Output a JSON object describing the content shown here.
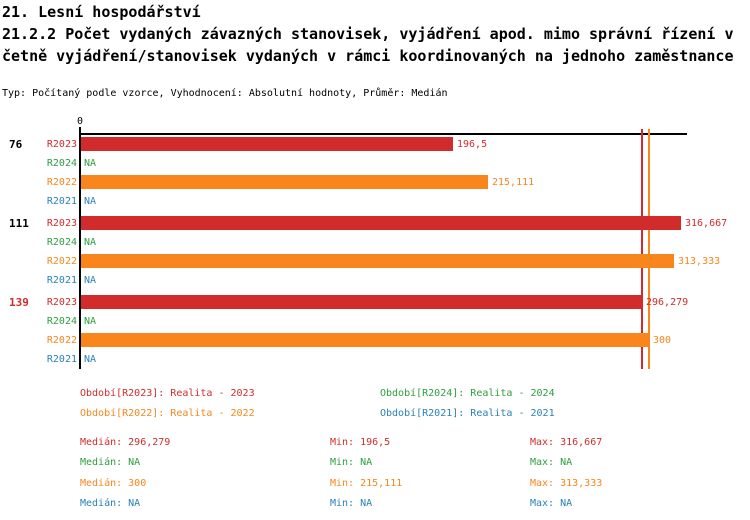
{
  "header": {
    "title_line1": "21. Lesní hospodářství",
    "title_line2": "21.2.2 Počet vydaných závazných stanovisek, vyjádření apod. mimo správní řízení v",
    "title_line3": "četně vyjádření/stanovisek vydaných v rámci koordinovaných na jednoho zaměstnance",
    "meta": "Typ: Počítaný podle vzorce, Vyhodnocení: Absolutní hodnoty, Průměr: Medián"
  },
  "colors": {
    "axis": "#000000",
    "group_label_default": "#000000",
    "group_label_highlight": "#d22b2b",
    "series": {
      "R2023": "#d22b2b",
      "R2024": "#2e9e3e",
      "R2022": "#f8861d",
      "R2021": "#2980b9"
    }
  },
  "chart_data": {
    "type": "bar",
    "orientation": "horizontal",
    "origin_label": "0",
    "xmax": 320,
    "na_text": "NA",
    "series_order": [
      "R2023",
      "R2024",
      "R2022",
      "R2021"
    ],
    "groups": [
      {
        "label": "76",
        "highlight": false,
        "rows": [
          {
            "series": "R2023",
            "value": 196.5,
            "display": "196,5"
          },
          {
            "series": "R2024",
            "value": null,
            "display": "NA"
          },
          {
            "series": "R2022",
            "value": 215.111,
            "display": "215,111"
          },
          {
            "series": "R2021",
            "value": null,
            "display": "NA"
          }
        ]
      },
      {
        "label": "111",
        "highlight": false,
        "rows": [
          {
            "series": "R2023",
            "value": 316.667,
            "display": "316,667"
          },
          {
            "series": "R2024",
            "value": null,
            "display": "NA"
          },
          {
            "series": "R2022",
            "value": 313.333,
            "display": "313,333"
          },
          {
            "series": "R2021",
            "value": null,
            "display": "NA"
          }
        ]
      },
      {
        "label": "139",
        "highlight": true,
        "rows": [
          {
            "series": "R2023",
            "value": 296.279,
            "display": "296,279"
          },
          {
            "series": "R2024",
            "value": null,
            "display": "NA"
          },
          {
            "series": "R2022",
            "value": 300,
            "display": "300"
          },
          {
            "series": "R2021",
            "value": null,
            "display": "NA"
          }
        ]
      }
    ],
    "median_lines": [
      {
        "series": "R2023",
        "value": 296.279
      },
      {
        "series": "R2022",
        "value": 300
      }
    ],
    "legend": [
      {
        "series": "R2023",
        "label": "Období[R2023]: Realita - 2023"
      },
      {
        "series": "R2024",
        "label": "Období[R2024]: Realita - 2024"
      },
      {
        "series": "R2022",
        "label": "Období[R2022]: Realita - 2022"
      },
      {
        "series": "R2021",
        "label": "Období[R2021]: Realita - 2021"
      }
    ],
    "stats": {
      "labels": {
        "median": "Medián:",
        "min": "Min:",
        "max": "Max:"
      },
      "rows": [
        {
          "series": "R2023",
          "median": "296,279",
          "min": "196,5",
          "max": "316,667"
        },
        {
          "series": "R2024",
          "median": "NA",
          "min": "NA",
          "max": "NA"
        },
        {
          "series": "R2022",
          "median": "300",
          "min": "215,111",
          "max": "313,333"
        },
        {
          "series": "R2021",
          "median": "NA",
          "min": "NA",
          "max": "NA"
        }
      ]
    }
  }
}
